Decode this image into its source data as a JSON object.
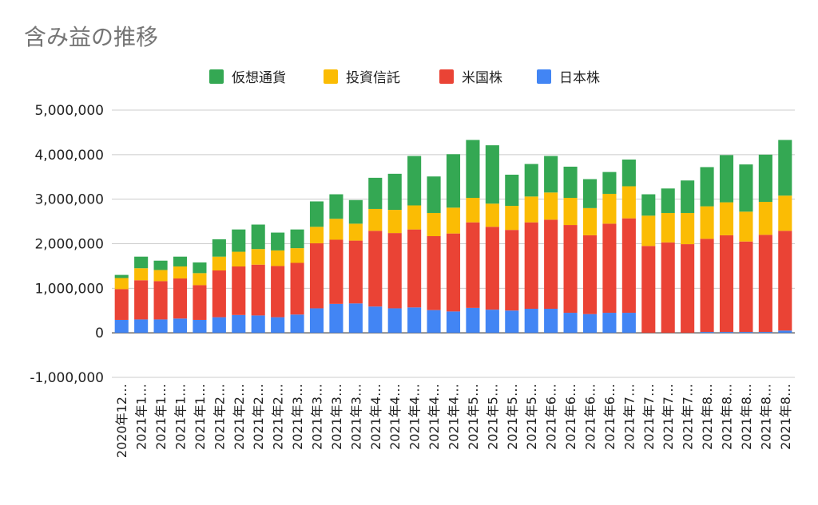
{
  "chart_data": {
    "type": "bar",
    "stacked": true,
    "title": "含み益の推移",
    "xlabel": "",
    "ylabel": "",
    "ylim": [
      -1000000,
      5000000
    ],
    "yticks": [
      "5,000,000",
      "4,000,000",
      "3,000,000",
      "2,000,000",
      "1,000,000",
      "0",
      "-1,000,000"
    ],
    "yticks_values": [
      5000000,
      4000000,
      3000000,
      2000000,
      1000000,
      0,
      -1000000
    ],
    "grid": true,
    "legend_position": "top",
    "categories": [
      "2020年12…",
      "2021年1…",
      "2021年1…",
      "2021年1…",
      "2021年1…",
      "2021年2…",
      "2021年2…",
      "2021年2…",
      "2021年2…",
      "2021年3…",
      "2021年3…",
      "2021年3…",
      "2021年3…",
      "2021年4…",
      "2021年4…",
      "2021年4…",
      "2021年4…",
      "2021年4…",
      "2021年5…",
      "2021年5…",
      "2021年5…",
      "2021年5…",
      "2021年6…",
      "2021年6…",
      "2021年6…",
      "2021年6…",
      "2021年7…",
      "2021年7…",
      "2021年7…",
      "2021年7…",
      "2021年8…",
      "2021年8…",
      "2021年8…",
      "2021年8…",
      "2021年8…"
    ],
    "series": [
      {
        "name": "日本株",
        "color": "#4285f4",
        "values": [
          290000,
          300000,
          300000,
          320000,
          290000,
          350000,
          400000,
          390000,
          350000,
          410000,
          550000,
          650000,
          660000,
          590000,
          550000,
          570000,
          510000,
          480000,
          560000,
          520000,
          500000,
          540000,
          540000,
          450000,
          420000,
          450000,
          450000,
          0,
          0,
          0,
          20000,
          20000,
          20000,
          20000,
          50000
        ]
      },
      {
        "name": "米国株",
        "color": "#ea4335",
        "values": [
          690000,
          880000,
          860000,
          900000,
          780000,
          1050000,
          1090000,
          1140000,
          1150000,
          1160000,
          1460000,
          1440000,
          1410000,
          1700000,
          1690000,
          1750000,
          1660000,
          1750000,
          1920000,
          1860000,
          1810000,
          1940000,
          2000000,
          1970000,
          1770000,
          2000000,
          2120000,
          1950000,
          2030000,
          1990000,
          2090000,
          2170000,
          2030000,
          2180000,
          2240000
        ]
      },
      {
        "name": "投資信託",
        "color": "#fbbc04",
        "values": [
          250000,
          270000,
          250000,
          270000,
          270000,
          310000,
          330000,
          350000,
          350000,
          330000,
          370000,
          470000,
          380000,
          490000,
          520000,
          540000,
          520000,
          580000,
          550000,
          520000,
          540000,
          580000,
          610000,
          610000,
          610000,
          670000,
          720000,
          680000,
          660000,
          700000,
          730000,
          740000,
          670000,
          740000,
          790000
        ]
      },
      {
        "name": "仮想通貨",
        "color": "#34a853",
        "values": [
          70000,
          260000,
          210000,
          220000,
          240000,
          390000,
          500000,
          550000,
          400000,
          420000,
          570000,
          550000,
          530000,
          700000,
          810000,
          1110000,
          820000,
          1200000,
          1300000,
          1310000,
          700000,
          730000,
          820000,
          700000,
          650000,
          490000,
          600000,
          480000,
          550000,
          730000,
          880000,
          1060000,
          1060000,
          1060000,
          1250000
        ]
      }
    ]
  }
}
